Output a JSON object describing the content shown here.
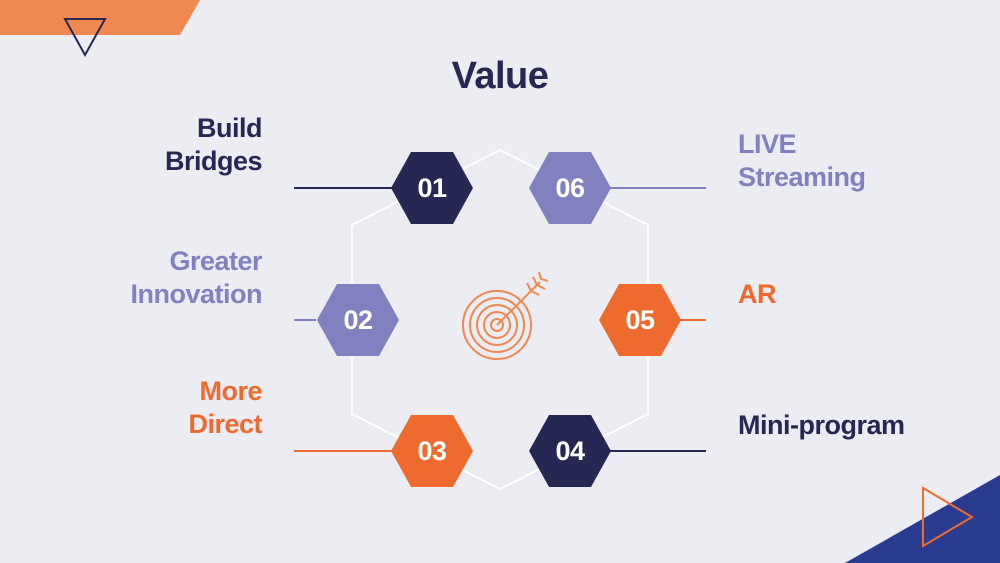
{
  "title": "Value",
  "colors": {
    "navy": "#262853",
    "purple": "#8181C0",
    "orange": "#EF6A2E",
    "accent_orange": "#F0884F",
    "blue": "#2A3C8F",
    "background": "#ECEDF2"
  },
  "items": [
    {
      "number": "01",
      "label_lines": [
        "Build",
        "Bridges"
      ],
      "color": "navy"
    },
    {
      "number": "02",
      "label_lines": [
        "Greater",
        "Innovation"
      ],
      "color": "purple"
    },
    {
      "number": "03",
      "label_lines": [
        "More",
        "Direct"
      ],
      "color": "orange"
    },
    {
      "number": "04",
      "label_lines": [
        "Mini-program"
      ],
      "color": "navy"
    },
    {
      "number": "05",
      "label_lines": [
        "AR"
      ],
      "color": "orange"
    },
    {
      "number": "06",
      "label_lines": [
        "LIVE",
        "Streaming"
      ],
      "color": "purple"
    }
  ],
  "center_icon": "target-arrow-icon",
  "decorations": [
    "triangle-outline-icon",
    "play-triangle-outline-icon"
  ]
}
